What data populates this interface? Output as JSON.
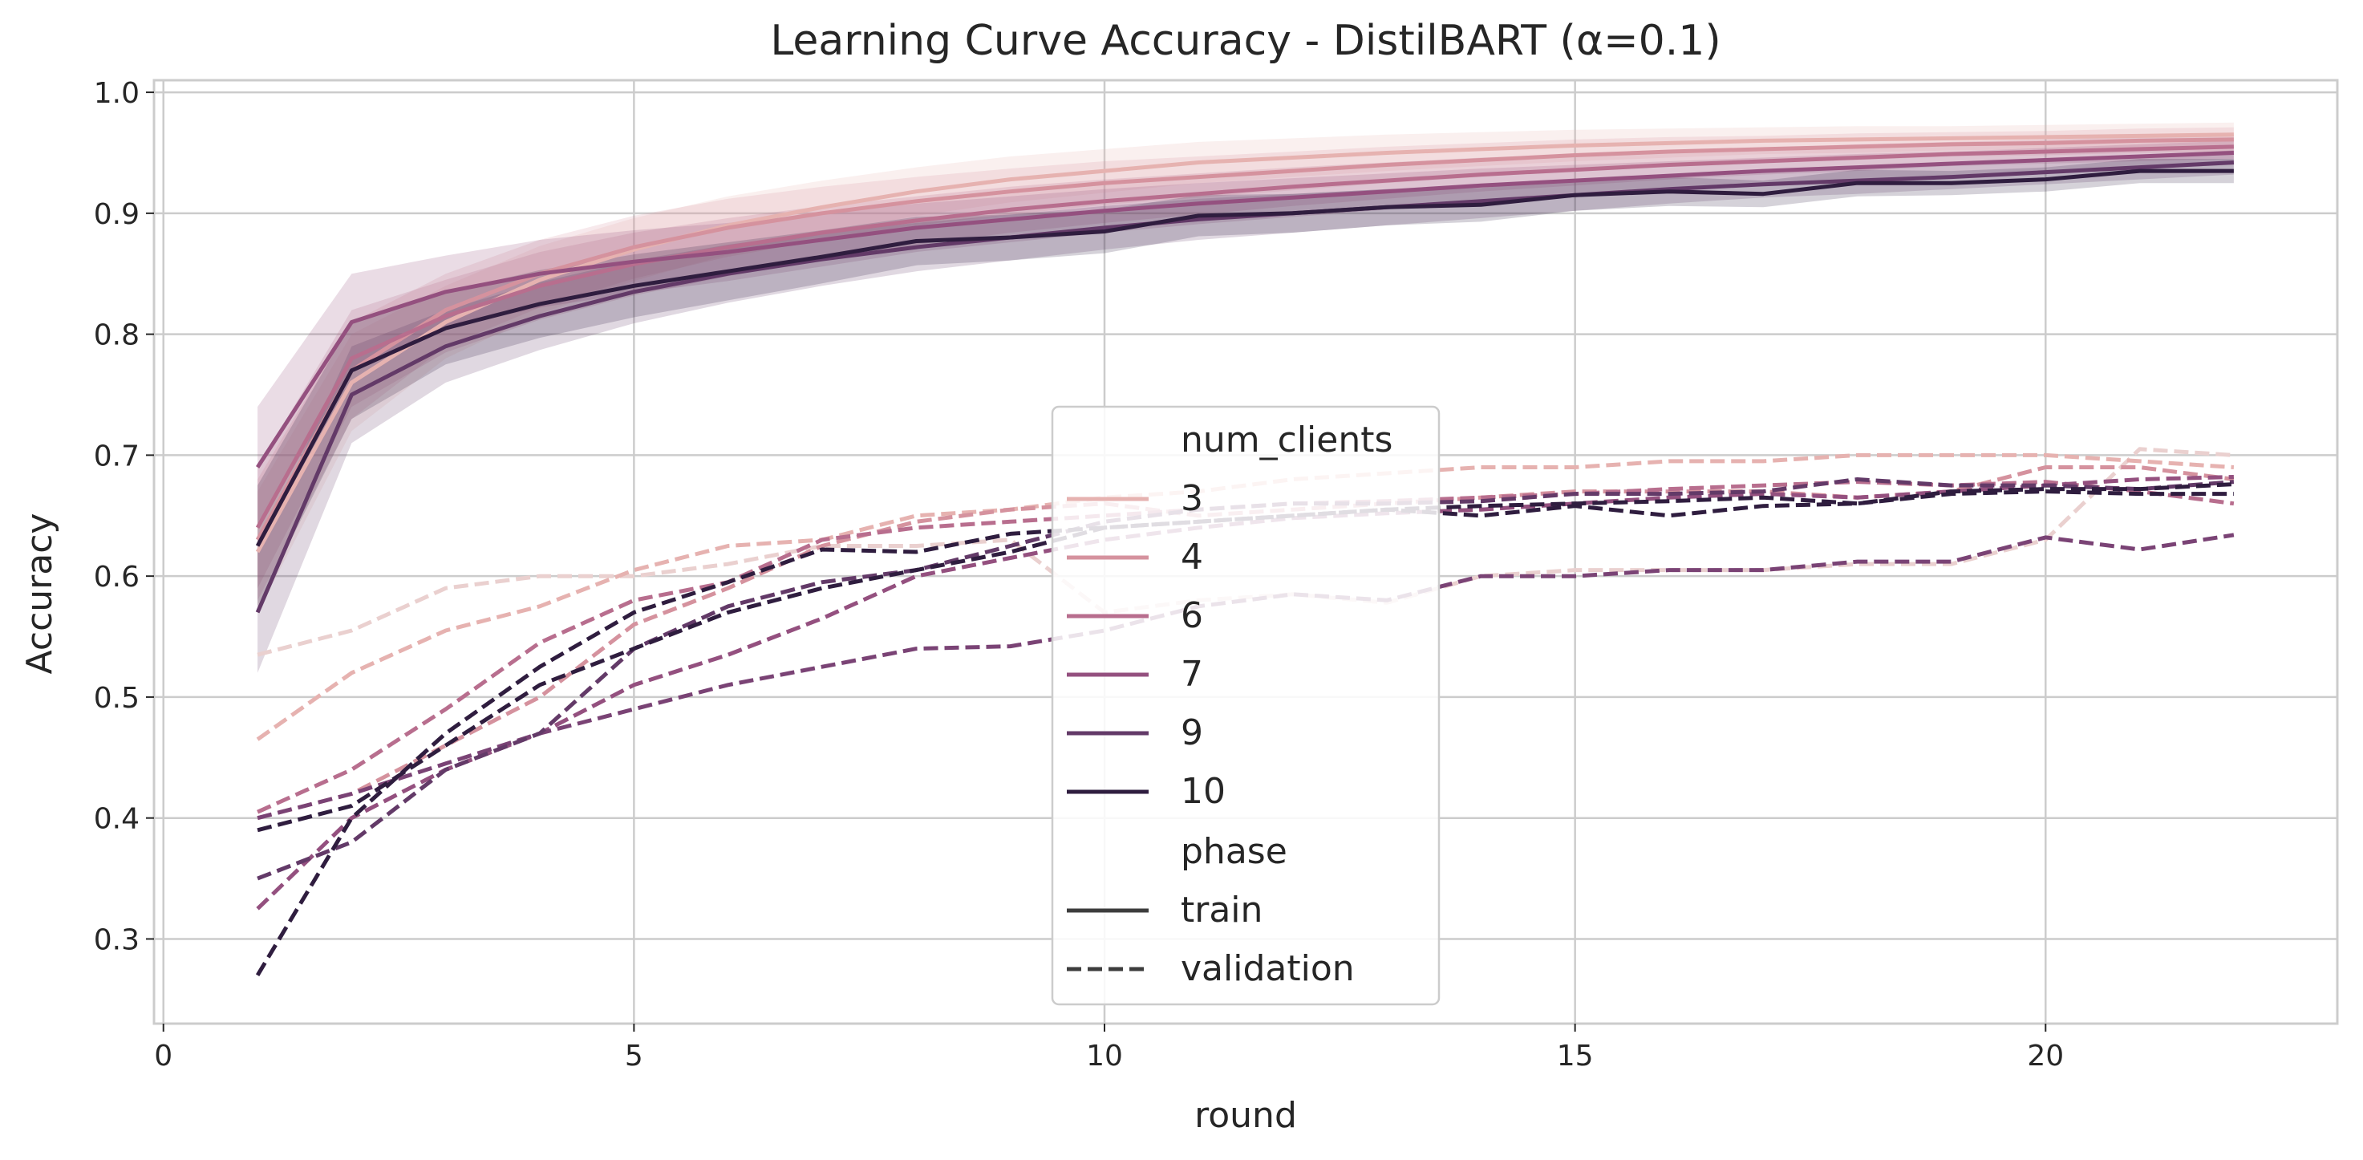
{
  "chart_data": {
    "type": "line",
    "title": "Learning Curve Accuracy - DistilBART (α=0.1)",
    "xlabel": "round",
    "ylabel": "Accuracy",
    "xlim": [
      -0.1,
      23.1
    ],
    "ylim": [
      0.23,
      1.01
    ],
    "grid": true,
    "x_ticks": [
      0,
      5,
      10,
      15,
      20
    ],
    "y_ticks": [
      0.3,
      0.4,
      0.5,
      0.6,
      0.7,
      0.8,
      0.9,
      1.0
    ],
    "x_tick_labels": [
      "0",
      "5",
      "10",
      "15",
      "20"
    ],
    "y_tick_labels": [
      "0.3",
      "0.4",
      "0.5",
      "0.6",
      "0.7",
      "0.8",
      "0.9",
      "1.0"
    ],
    "x": [
      1,
      2,
      3,
      4,
      5,
      6,
      7,
      8,
      9,
      10,
      11,
      12,
      13,
      14,
      15,
      16,
      17,
      18,
      19,
      20,
      21,
      22
    ],
    "legend": {
      "placement": "center",
      "hue_title": "num_clients",
      "style_title": "phase",
      "entries": [
        {
          "label": "3",
          "color": "#e6b2b0"
        },
        {
          "label": "4",
          "color": "#d5929e"
        },
        {
          "label": "6",
          "color": "#b86e8e"
        },
        {
          "label": "7",
          "color": "#94507f"
        },
        {
          "label": "9",
          "color": "#633a68"
        },
        {
          "label": "10",
          "color": "#2f1d3f"
        }
      ],
      "styles": [
        {
          "label": "train",
          "dash": "solid"
        },
        {
          "label": "validation",
          "dash": "dashed"
        }
      ]
    },
    "train_band_half_width": [
      0.05,
      0.04,
      0.03,
      0.028,
      0.026,
      0.024,
      0.022,
      0.02,
      0.019,
      0.018,
      0.017,
      0.016,
      0.015,
      0.014,
      0.013,
      0.012,
      0.011,
      0.011,
      0.01,
      0.01,
      0.01,
      0.01
    ],
    "series": [
      {
        "name": "3",
        "phase": "train",
        "color": "#e6b2b0",
        "values": [
          0.62,
          0.76,
          0.81,
          0.845,
          0.87,
          0.89,
          0.905,
          0.918,
          0.928,
          0.935,
          0.942,
          0.946,
          0.95,
          0.953,
          0.956,
          0.958,
          0.96,
          0.961,
          0.962,
          0.963,
          0.964,
          0.965
        ]
      },
      {
        "name": "4",
        "phase": "train",
        "color": "#d5929e",
        "values": [
          0.63,
          0.77,
          0.82,
          0.85,
          0.872,
          0.888,
          0.9,
          0.91,
          0.918,
          0.925,
          0.93,
          0.935,
          0.94,
          0.944,
          0.948,
          0.951,
          0.953,
          0.955,
          0.957,
          0.958,
          0.96,
          0.961
        ]
      },
      {
        "name": "6",
        "phase": "train",
        "color": "#b86e8e",
        "values": [
          0.64,
          0.78,
          0.815,
          0.84,
          0.858,
          0.872,
          0.884,
          0.894,
          0.903,
          0.91,
          0.916,
          0.922,
          0.927,
          0.932,
          0.936,
          0.94,
          0.943,
          0.946,
          0.949,
          0.951,
          0.953,
          0.955
        ]
      },
      {
        "name": "7",
        "phase": "train",
        "color": "#94507f",
        "values": [
          0.69,
          0.81,
          0.835,
          0.85,
          0.86,
          0.868,
          0.878,
          0.888,
          0.895,
          0.902,
          0.908,
          0.913,
          0.918,
          0.923,
          0.927,
          0.931,
          0.935,
          0.938,
          0.941,
          0.944,
          0.947,
          0.95
        ]
      },
      {
        "name": "9",
        "phase": "train",
        "color": "#633a68",
        "values": [
          0.57,
          0.75,
          0.79,
          0.815,
          0.835,
          0.85,
          0.862,
          0.872,
          0.88,
          0.888,
          0.895,
          0.9,
          0.905,
          0.91,
          0.915,
          0.92,
          0.924,
          0.927,
          0.93,
          0.934,
          0.938,
          0.942
        ]
      },
      {
        "name": "10",
        "phase": "train",
        "color": "#2f1d3f",
        "values": [
          0.625,
          0.77,
          0.805,
          0.825,
          0.84,
          0.852,
          0.864,
          0.877,
          0.88,
          0.885,
          0.898,
          0.9,
          0.905,
          0.907,
          0.915,
          0.918,
          0.916,
          0.925,
          0.925,
          0.928,
          0.935,
          0.935
        ]
      },
      {
        "name": "3",
        "phase": "validation",
        "color": "#ead0cf",
        "values": [
          0.535,
          0.555,
          0.59,
          0.6,
          0.6,
          0.61,
          0.625,
          0.625,
          0.63,
          0.57,
          0.58,
          0.585,
          0.578,
          0.6,
          0.605,
          0.605,
          0.605,
          0.61,
          0.61,
          0.63,
          0.705,
          0.7
        ]
      },
      {
        "name": "3",
        "phase": "validation",
        "color": "#e6b2b0",
        "values": [
          0.465,
          0.52,
          0.555,
          0.575,
          0.605,
          0.625,
          0.63,
          0.65,
          0.655,
          0.665,
          0.67,
          0.68,
          0.685,
          0.69,
          0.69,
          0.695,
          0.695,
          0.7,
          0.7,
          0.7,
          0.695,
          0.69
        ]
      },
      {
        "name": "4",
        "phase": "validation",
        "color": "#d5929e",
        "values": [
          0.4,
          0.42,
          0.46,
          0.5,
          0.56,
          0.59,
          0.625,
          0.645,
          0.655,
          0.66,
          0.65,
          0.655,
          0.66,
          0.665,
          0.67,
          0.67,
          0.67,
          0.665,
          0.67,
          0.69,
          0.69,
          0.68
        ]
      },
      {
        "name": "6",
        "phase": "validation",
        "color": "#b86e8e",
        "values": [
          0.405,
          0.44,
          0.49,
          0.545,
          0.58,
          0.595,
          0.63,
          0.64,
          0.645,
          0.65,
          0.655,
          0.66,
          0.662,
          0.665,
          0.668,
          0.672,
          0.675,
          0.678,
          0.675,
          0.678,
          0.67,
          0.66
        ]
      },
      {
        "name": "7",
        "phase": "validation",
        "color": "#94507f",
        "values": [
          0.325,
          0.4,
          0.44,
          0.47,
          0.51,
          0.535,
          0.565,
          0.6,
          0.615,
          0.63,
          0.64,
          0.648,
          0.652,
          0.655,
          0.66,
          0.665,
          0.668,
          0.665,
          0.67,
          0.675,
          0.68,
          0.682
        ]
      },
      {
        "name": "7",
        "phase": "validation",
        "color": "#7a4375",
        "values": [
          0.4,
          0.42,
          0.445,
          0.47,
          0.49,
          0.51,
          0.525,
          0.54,
          0.542,
          0.555,
          0.575,
          0.585,
          0.58,
          0.6,
          0.6,
          0.605,
          0.605,
          0.612,
          0.612,
          0.632,
          0.622,
          0.634
        ]
      },
      {
        "name": "9",
        "phase": "validation",
        "color": "#633a68",
        "values": [
          0.35,
          0.38,
          0.44,
          0.47,
          0.54,
          0.575,
          0.595,
          0.605,
          0.625,
          0.645,
          0.655,
          0.66,
          0.66,
          0.662,
          0.668,
          0.668,
          0.67,
          0.68,
          0.675,
          0.675,
          0.672,
          0.678
        ]
      },
      {
        "name": "10",
        "phase": "validation",
        "color": "#2f1d3f",
        "values": [
          0.27,
          0.4,
          0.47,
          0.525,
          0.57,
          0.595,
          0.622,
          0.62,
          0.635,
          0.64,
          0.645,
          0.65,
          0.655,
          0.65,
          0.658,
          0.65,
          0.658,
          0.66,
          0.668,
          0.67,
          0.668,
          0.668
        ]
      },
      {
        "name": "10",
        "phase": "validation",
        "color": "#2f1d3f",
        "values": [
          0.39,
          0.41,
          0.46,
          0.51,
          0.54,
          0.57,
          0.59,
          0.605,
          0.62,
          0.64,
          0.645,
          0.65,
          0.655,
          0.658,
          0.66,
          0.662,
          0.665,
          0.66,
          0.67,
          0.672,
          0.672,
          0.676
        ]
      }
    ]
  }
}
